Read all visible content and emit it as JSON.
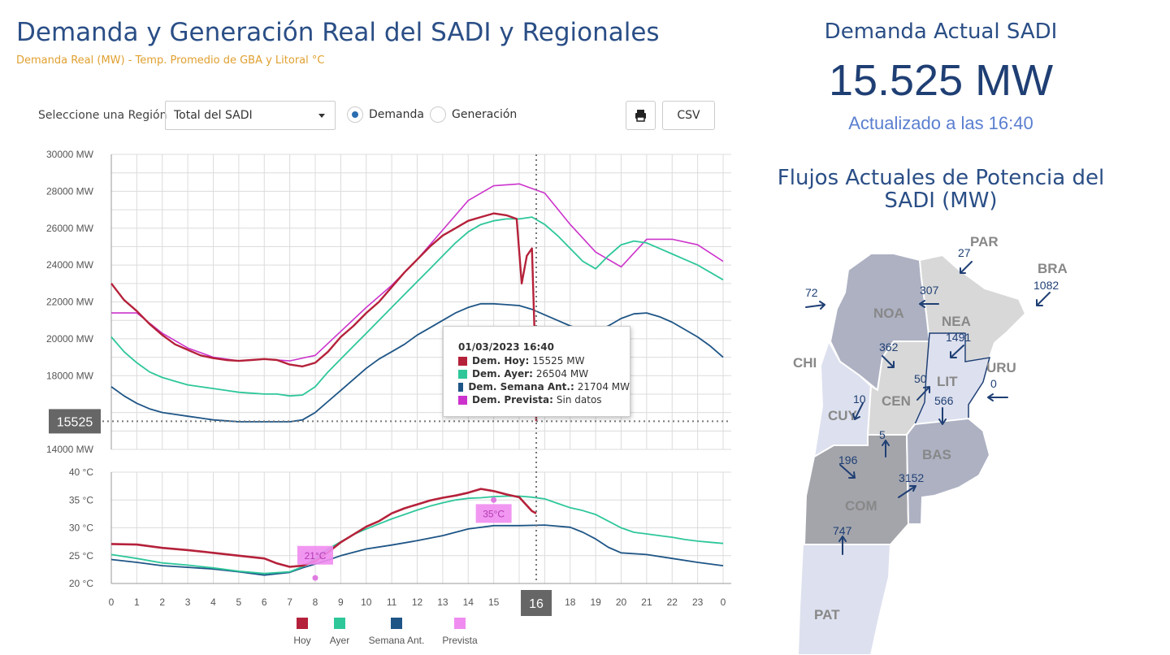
{
  "header": {
    "title": "Demanda y Generación Real del SADI y Regionales",
    "subtitle": "Demanda Real (MW) - Temp. Promedio de GBA y Litoral °C"
  },
  "controls": {
    "region_label": "Seleccione una Región",
    "region_selected": "Total del SADI",
    "radio_demanda": "Demanda",
    "radio_generacion": "Generación",
    "radio_selected": "Demanda",
    "csv_label": "CSV",
    "print_icon": "printer-icon"
  },
  "current": {
    "title": "Demanda Actual SADI",
    "value": "15.525 MW",
    "updated": "Actualizado a las 16:40"
  },
  "flows": {
    "title": "Flujos Actuales de Potencia del SADI (MW)",
    "regions": [
      "PAR",
      "BRA",
      "NOA",
      "NEA",
      "CHI",
      "LIT",
      "URU",
      "CEN",
      "CUY",
      "BAS",
      "COM",
      "PAT"
    ],
    "values": [
      "27",
      "1082",
      "72",
      "307",
      "1491",
      "362",
      "50",
      "0",
      "10",
      "566",
      "5",
      "196",
      "3152",
      "747"
    ]
  },
  "tooltip": {
    "time": "01/03/2023 16:40",
    "rows": [
      {
        "label": "Dem. Hoy:",
        "value": "15525 MW"
      },
      {
        "label": "Dem. Ayer:",
        "value": "26504 MW"
      },
      {
        "label": "Dem. Semana Ant.:",
        "value": "21704 MW"
      },
      {
        "label": "Dem. Prevista:",
        "value": "Sin datos"
      }
    ]
  },
  "crosshair": {
    "y_label": "15525",
    "x_label": "16"
  },
  "legend": [
    "Hoy",
    "Ayer",
    "Semana Ant.",
    "Prevista"
  ],
  "colors": {
    "hoy": "#b5213a",
    "ayer": "#2ec79a",
    "semana": "#1e5586",
    "prevista": "#cc33cc",
    "prevista_legend": "#f08cf0"
  },
  "chart_data": [
    {
      "type": "line",
      "title": "Demanda y Generación Real del SADI y Regionales",
      "y_unit": "MW",
      "ylim": [
        14000,
        30000
      ],
      "yticks": [
        "30000 MW",
        "28000 MW",
        "26000 MW",
        "24000 MW",
        "22000 MW",
        "20000 MW",
        "18000 MW",
        "14000 MW"
      ],
      "xticks": [
        "0",
        "1",
        "2",
        "3",
        "4",
        "5",
        "6",
        "7",
        "8",
        "9",
        "10",
        "11",
        "12",
        "13",
        "14",
        "15",
        "16",
        "17",
        "18",
        "19",
        "20",
        "21",
        "22",
        "23",
        "0"
      ],
      "series": [
        {
          "name": "Hoy",
          "x": [
            0,
            0.5,
            1,
            1.5,
            2,
            2.5,
            3,
            3.5,
            4,
            4.5,
            5,
            5.5,
            6,
            6.5,
            7,
            7.5,
            8,
            8.5,
            9,
            9.5,
            10,
            10.5,
            11,
            11.5,
            12,
            12.5,
            13,
            13.5,
            14,
            14.5,
            15,
            15.5,
            15.9,
            16.1,
            16.3,
            16.5,
            16.6,
            16.67
          ],
          "values": [
            23000,
            22100,
            21500,
            20800,
            20200,
            19700,
            19400,
            19100,
            18950,
            18850,
            18800,
            18850,
            18900,
            18850,
            18600,
            18500,
            18700,
            19300,
            20100,
            20700,
            21400,
            22000,
            22800,
            23600,
            24300,
            25000,
            25600,
            26000,
            26400,
            26600,
            26800,
            26700,
            26500,
            23000,
            24500,
            24900,
            20500,
            15525
          ]
        },
        {
          "name": "Ayer",
          "x": [
            0,
            0.5,
            1,
            1.5,
            2,
            2.5,
            3,
            3.5,
            4,
            4.5,
            5,
            5.5,
            6,
            6.5,
            7,
            7.5,
            8,
            8.5,
            9,
            9.5,
            10,
            10.5,
            11,
            11.5,
            12,
            12.5,
            13,
            13.5,
            14,
            14.5,
            15,
            15.5,
            16,
            16.5,
            17,
            17.5,
            18,
            18.5,
            19,
            19.5,
            20,
            20.5,
            21,
            21.5,
            22,
            22.5,
            23,
            23.5,
            24
          ],
          "values": [
            20100,
            19300,
            18700,
            18200,
            17900,
            17700,
            17500,
            17400,
            17300,
            17200,
            17100,
            17050,
            17000,
            17000,
            16900,
            16950,
            17400,
            18200,
            18900,
            19600,
            20300,
            21000,
            21700,
            22400,
            23100,
            23800,
            24500,
            25200,
            25800,
            26200,
            26400,
            26500,
            26500,
            26600,
            26200,
            25600,
            24900,
            24200,
            23800,
            24500,
            25100,
            25300,
            25200,
            24900,
            24600,
            24300,
            24000,
            23600,
            23200
          ]
        },
        {
          "name": "Semana Ant.",
          "x": [
            0,
            0.5,
            1,
            1.5,
            2,
            2.5,
            3,
            3.5,
            4,
            4.5,
            5,
            5.5,
            6,
            6.5,
            7,
            7.5,
            8,
            8.5,
            9,
            9.5,
            10,
            10.5,
            11,
            11.5,
            12,
            12.5,
            13,
            13.5,
            14,
            14.5,
            15,
            15.5,
            16,
            16.5,
            17,
            17.5,
            18,
            18.5,
            19,
            19.5,
            20,
            20.5,
            21,
            21.5,
            22,
            22.5,
            23,
            23.5,
            24
          ],
          "values": [
            17400,
            16900,
            16500,
            16200,
            16000,
            15900,
            15800,
            15700,
            15600,
            15550,
            15500,
            15500,
            15500,
            15500,
            15500,
            15600,
            16000,
            16600,
            17200,
            17800,
            18400,
            18900,
            19300,
            19700,
            20200,
            20600,
            21000,
            21400,
            21700,
            21900,
            21900,
            21850,
            21800,
            21600,
            21300,
            21000,
            20700,
            20500,
            20400,
            20700,
            21100,
            21350,
            21400,
            21200,
            20900,
            20500,
            20100,
            19600,
            19000
          ]
        },
        {
          "name": "Prevista",
          "x": [
            0,
            1,
            2,
            3,
            4,
            5,
            6,
            7,
            8,
            9,
            10,
            11,
            12,
            13,
            14,
            15,
            16,
            17,
            18,
            19,
            20,
            21,
            22,
            23,
            24
          ],
          "values": [
            21400,
            21400,
            20300,
            19500,
            19000,
            18800,
            18900,
            18800,
            19100,
            20400,
            21700,
            22900,
            24300,
            25900,
            27500,
            28300,
            28400,
            27900,
            26200,
            24700,
            23900,
            25400,
            25400,
            25100,
            24200
          ]
        }
      ]
    },
    {
      "type": "line",
      "y_unit": "°C",
      "ylim": [
        20,
        40
      ],
      "yticks": [
        "40 °C",
        "35 °C",
        "30 °C",
        "25 °C",
        "20 °C"
      ],
      "series": [
        {
          "name": "Hoy",
          "x": [
            0,
            1,
            2,
            3,
            4,
            5,
            6,
            6.5,
            7,
            7.5,
            8,
            8.5,
            9,
            9.5,
            10,
            10.5,
            11,
            11.5,
            12,
            12.5,
            13,
            13.5,
            14,
            14.5,
            15,
            15.5,
            16,
            16.5,
            16.67
          ],
          "values": [
            27.1,
            27,
            26.4,
            26,
            25.5,
            25,
            24.5,
            23.6,
            23,
            23.2,
            24,
            25.6,
            27.4,
            28.8,
            30.2,
            31.2,
            32.6,
            33.5,
            34.2,
            34.9,
            35.4,
            35.8,
            36.3,
            37,
            36.6,
            36,
            35.5,
            33,
            32.6
          ]
        },
        {
          "name": "Ayer",
          "x": [
            0,
            1,
            2,
            3,
            4,
            5,
            6,
            7,
            7.5,
            8,
            8.5,
            9,
            9.5,
            10,
            10.5,
            11,
            11.5,
            12,
            12.5,
            13,
            13.5,
            14,
            14.5,
            15,
            15.5,
            16,
            16.5,
            17,
            17.5,
            18,
            18.5,
            19,
            19.5,
            20,
            20.5,
            21,
            21.5,
            22,
            22.5,
            23,
            23.5,
            24
          ],
          "values": [
            25.2,
            24.5,
            23.7,
            23.3,
            22.8,
            22.2,
            21.8,
            22.1,
            23,
            24.5,
            26.2,
            27.5,
            28.8,
            29.8,
            30.7,
            31.6,
            32.4,
            33.2,
            33.9,
            34.5,
            35,
            35.3,
            35.4,
            35.6,
            35.7,
            35.7,
            35.5,
            35.2,
            34.4,
            33.6,
            33.1,
            32.4,
            31.2,
            30,
            29.2,
            28.9,
            28.6,
            28.3,
            27.9,
            27.6,
            27.4,
            27.2
          ]
        },
        {
          "name": "Semana Ant.",
          "x": [
            0,
            1,
            2,
            3,
            4,
            5,
            6,
            7,
            7.5,
            8,
            8.5,
            9,
            9.5,
            10,
            11,
            12,
            13,
            14,
            15,
            16,
            17,
            18,
            18.5,
            19,
            19.5,
            20,
            21,
            22,
            23,
            24
          ],
          "values": [
            24.3,
            23.8,
            23.2,
            22.9,
            22.6,
            22.1,
            21.5,
            22,
            22.8,
            23.5,
            24.2,
            25,
            25.6,
            26.2,
            26.9,
            27.7,
            28.6,
            29.8,
            30.4,
            30.4,
            30.5,
            30.1,
            29.2,
            28,
            26.5,
            25.5,
            25.2,
            24.5,
            23.8,
            23.2
          ]
        }
      ],
      "forecast_markers": [
        {
          "x": 8,
          "label": "21°C",
          "value": 21
        },
        {
          "x": 15,
          "label": "35°C",
          "value": 35
        }
      ]
    }
  ]
}
